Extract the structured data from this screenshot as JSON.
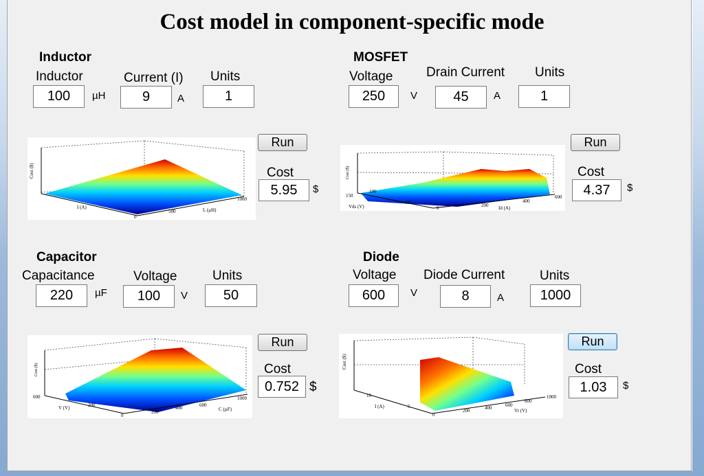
{
  "title": "Cost model in component-specific mode",
  "inductor": {
    "section": "Inductor",
    "label_inductance": "Inductor",
    "label_current": "Current (I)",
    "label_units": "Units",
    "inductance_value": "100",
    "inductance_unit": "µH",
    "current_value": "9",
    "current_unit": "A",
    "units_value": "1",
    "run_label": "Run",
    "cost_label": "Cost",
    "cost_value": "5.95",
    "cost_unit": "$"
  },
  "mosfet": {
    "section": "MOSFET",
    "label_voltage": "Voltage",
    "label_drain": "Drain Current",
    "label_units": "Units",
    "voltage_value": "250",
    "voltage_unit": "V",
    "drain_value": "45",
    "drain_unit": "A",
    "units_value": "1",
    "run_label": "Run",
    "cost_label": "Cost",
    "cost_value": "4.37",
    "cost_unit": "$"
  },
  "capacitor": {
    "section": "Capacitor",
    "label_capacitance": "Capacitance",
    "label_voltage": "Voltage",
    "label_units": "Units",
    "capacitance_value": "220",
    "capacitance_unit": "µF",
    "voltage_value": "100",
    "voltage_unit": "V",
    "units_value": "50",
    "run_label": "Run",
    "cost_label": "Cost",
    "cost_value": "0.752",
    "cost_unit": "$"
  },
  "diode": {
    "section": "Diode",
    "label_voltage": "Voltage",
    "label_current": "Diode Current",
    "label_units": "Units",
    "voltage_value": "600",
    "voltage_unit": "V",
    "current_value": "8",
    "current_unit": "A",
    "units_value": "1000",
    "run_label": "Run",
    "cost_label": "Cost",
    "cost_value": "1.03",
    "cost_unit": "$"
  },
  "plots": {
    "colormap": [
      "#00008f",
      "#0050ff",
      "#00d0ff",
      "#70ff90",
      "#ffe000",
      "#ff7000",
      "#d00000"
    ],
    "inductor": {
      "ylabel": "Cost ($)",
      "xlabel": "L (µH)",
      "zlabel": "I (A)",
      "xticks": [
        "500",
        "1000"
      ],
      "zticks": [
        "0"
      ]
    },
    "mosfet": {
      "ylabel": "Cost ($)",
      "xlabel": "Id (A)",
      "zlabel": "Vds (V)",
      "xticks": [
        "0",
        "200",
        "400",
        "600"
      ],
      "zticks": [
        "150",
        "100",
        "50"
      ]
    },
    "capacitor": {
      "ylabel": "Cost ($)",
      "xlabel": "C (µF)",
      "zlabel": "V (V)",
      "xticks": [
        "0",
        "200",
        "400",
        "600",
        "1000"
      ],
      "zticks": [
        "600",
        "200"
      ]
    },
    "diode": {
      "ylabel": "Cost ($)",
      "xlabel": "Vr (V)",
      "zlabel": "I (A)",
      "xticks": [
        "0",
        "200",
        "400",
        "600",
        "800",
        "1000"
      ],
      "zticks": [
        "10",
        "5"
      ]
    }
  }
}
